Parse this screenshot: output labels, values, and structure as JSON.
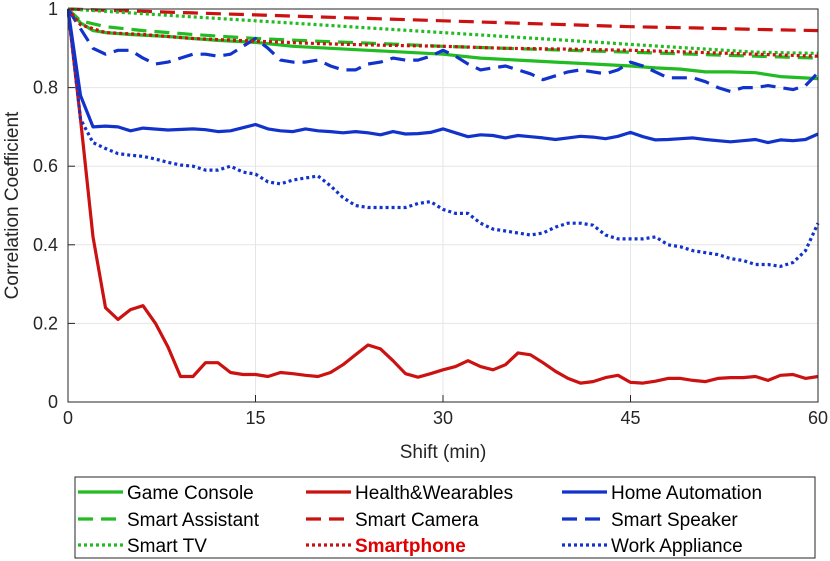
{
  "chart_data": {
    "type": "line",
    "title": "",
    "xlabel": "Shift (min)",
    "ylabel": "Correlation Coefficient",
    "xlim": [
      0,
      60
    ],
    "ylim": [
      0,
      1
    ],
    "xticks": [
      0,
      15,
      30,
      45,
      60
    ],
    "xtick_labels": [
      "0",
      "15",
      "30",
      "45",
      "60"
    ],
    "yticks": [
      0,
      0.2,
      0.4,
      0.6,
      0.8,
      1
    ],
    "ytick_labels": [
      "0",
      "0.2",
      "0.4",
      "0.6",
      "0.8",
      "1"
    ],
    "grid": true,
    "legend_position": "bottom",
    "series": [
      {
        "name": "Game Console",
        "color": "#22bb22",
        "style": "solid",
        "highlight": false,
        "x": [
          0,
          1,
          2,
          3,
          5,
          8,
          10,
          12,
          15,
          18,
          21,
          24,
          27,
          30,
          33,
          36,
          39,
          42,
          45,
          47,
          49,
          51,
          53,
          55,
          57,
          60
        ],
        "y": [
          1.0,
          0.965,
          0.945,
          0.94,
          0.935,
          0.93,
          0.925,
          0.92,
          0.915,
          0.905,
          0.9,
          0.895,
          0.89,
          0.885,
          0.875,
          0.87,
          0.865,
          0.86,
          0.855,
          0.85,
          0.847,
          0.84,
          0.84,
          0.838,
          0.828,
          0.823
        ]
      },
      {
        "name": "Health&Wearables",
        "color": "#cc1111",
        "style": "solid",
        "highlight": false,
        "x": [
          0,
          1,
          2,
          3,
          4,
          5,
          6,
          7,
          8,
          9,
          10,
          11,
          12,
          13,
          14,
          15,
          16,
          17,
          18,
          19,
          20,
          21,
          22,
          23,
          24,
          25,
          26,
          27,
          28,
          29,
          30,
          31,
          32,
          33,
          34,
          35,
          36,
          37,
          38,
          39,
          40,
          41,
          42,
          43,
          44,
          45,
          46,
          47,
          48,
          49,
          50,
          51,
          52,
          53,
          54,
          55,
          56,
          57,
          58,
          59,
          60
        ],
        "y": [
          1.0,
          0.72,
          0.42,
          0.24,
          0.21,
          0.235,
          0.245,
          0.2,
          0.14,
          0.065,
          0.065,
          0.1,
          0.1,
          0.075,
          0.07,
          0.07,
          0.065,
          0.075,
          0.072,
          0.068,
          0.065,
          0.075,
          0.095,
          0.12,
          0.145,
          0.135,
          0.105,
          0.072,
          0.063,
          0.072,
          0.082,
          0.09,
          0.105,
          0.09,
          0.082,
          0.095,
          0.125,
          0.12,
          0.1,
          0.078,
          0.06,
          0.048,
          0.052,
          0.062,
          0.068,
          0.05,
          0.048,
          0.053,
          0.06,
          0.06,
          0.055,
          0.052,
          0.06,
          0.062,
          0.062,
          0.065,
          0.055,
          0.068,
          0.07,
          0.06,
          0.065
        ]
      },
      {
        "name": "Home Automation",
        "color": "#1133cc",
        "style": "solid",
        "highlight": false,
        "x": [
          0,
          1,
          2,
          3,
          4,
          5,
          6,
          8,
          10,
          11,
          12,
          13,
          14,
          15,
          16,
          17,
          18,
          19,
          20,
          21,
          22,
          23,
          24,
          25,
          26,
          27,
          28,
          29,
          30,
          31,
          32,
          33,
          34,
          35,
          36,
          37,
          38,
          39,
          40,
          41,
          42,
          43,
          44,
          45,
          46,
          47,
          48,
          49,
          50,
          51,
          52,
          53,
          54,
          55,
          56,
          57,
          58,
          59,
          60
        ],
        "y": [
          1.0,
          0.78,
          0.7,
          0.702,
          0.7,
          0.69,
          0.697,
          0.692,
          0.695,
          0.693,
          0.688,
          0.69,
          0.698,
          0.706,
          0.695,
          0.69,
          0.688,
          0.695,
          0.69,
          0.688,
          0.685,
          0.688,
          0.685,
          0.68,
          0.688,
          0.682,
          0.683,
          0.686,
          0.695,
          0.685,
          0.675,
          0.68,
          0.678,
          0.672,
          0.678,
          0.675,
          0.672,
          0.668,
          0.672,
          0.676,
          0.674,
          0.67,
          0.676,
          0.686,
          0.675,
          0.667,
          0.668,
          0.67,
          0.672,
          0.668,
          0.665,
          0.662,
          0.665,
          0.668,
          0.66,
          0.667,
          0.665,
          0.668,
          0.682
        ]
      },
      {
        "name": "Smart Assistant",
        "color": "#22bb22",
        "style": "dashed",
        "highlight": false,
        "x": [
          0,
          1,
          3,
          6,
          10,
          15,
          20,
          25,
          30,
          35,
          40,
          45,
          50,
          55,
          60
        ],
        "y": [
          1.0,
          0.97,
          0.955,
          0.945,
          0.935,
          0.925,
          0.918,
          0.912,
          0.905,
          0.9,
          0.895,
          0.89,
          0.885,
          0.88,
          0.875
        ]
      },
      {
        "name": "Smart Camera",
        "color": "#cc1111",
        "style": "dashed",
        "highlight": false,
        "x": [
          0,
          5,
          10,
          15,
          20,
          25,
          30,
          35,
          40,
          45,
          50,
          55,
          60
        ],
        "y": [
          1.0,
          0.995,
          0.99,
          0.985,
          0.98,
          0.975,
          0.97,
          0.965,
          0.96,
          0.955,
          0.952,
          0.948,
          0.945
        ]
      },
      {
        "name": "Smart Speaker",
        "color": "#1133cc",
        "style": "dashed",
        "highlight": false,
        "x": [
          0,
          1,
          2,
          3,
          4,
          5,
          6,
          7,
          8,
          9,
          10,
          11,
          12,
          13,
          14,
          15,
          16,
          17,
          18,
          19,
          20,
          21,
          22,
          23,
          24,
          25,
          26,
          27,
          28,
          29,
          30,
          31,
          32,
          33,
          34,
          35,
          36,
          37,
          38,
          39,
          40,
          41,
          42,
          43,
          44,
          45,
          46,
          47,
          48,
          49,
          50,
          51,
          52,
          53,
          54,
          55,
          56,
          57,
          58,
          59,
          60
        ],
        "y": [
          1.0,
          0.95,
          0.9,
          0.885,
          0.895,
          0.895,
          0.875,
          0.86,
          0.865,
          0.875,
          0.885,
          0.885,
          0.88,
          0.885,
          0.905,
          0.925,
          0.9,
          0.87,
          0.865,
          0.865,
          0.87,
          0.855,
          0.845,
          0.845,
          0.86,
          0.865,
          0.875,
          0.87,
          0.87,
          0.88,
          0.895,
          0.88,
          0.86,
          0.845,
          0.85,
          0.855,
          0.845,
          0.835,
          0.82,
          0.83,
          0.84,
          0.845,
          0.84,
          0.835,
          0.845,
          0.865,
          0.855,
          0.84,
          0.825,
          0.825,
          0.825,
          0.815,
          0.8,
          0.79,
          0.8,
          0.8,
          0.805,
          0.8,
          0.795,
          0.805,
          0.838
        ]
      },
      {
        "name": "Smart TV",
        "color": "#22bb22",
        "style": "dotted",
        "highlight": false,
        "x": [
          0,
          5,
          10,
          15,
          20,
          25,
          30,
          35,
          40,
          45,
          50,
          55,
          60
        ],
        "y": [
          1.0,
          0.99,
          0.98,
          0.97,
          0.96,
          0.95,
          0.94,
          0.93,
          0.92,
          0.91,
          0.9,
          0.89,
          0.887
        ]
      },
      {
        "name": "Smartphone",
        "color": "#cc1111",
        "style": "dotted",
        "highlight": true,
        "x": [
          0,
          1,
          3,
          6,
          10,
          15,
          20,
          25,
          30,
          35,
          40,
          45,
          50,
          55,
          60
        ],
        "y": [
          1.0,
          0.96,
          0.94,
          0.935,
          0.925,
          0.918,
          0.912,
          0.908,
          0.905,
          0.9,
          0.898,
          0.895,
          0.89,
          0.885,
          0.88
        ]
      },
      {
        "name": "Work Appliance",
        "color": "#1133cc",
        "style": "dotted",
        "highlight": false,
        "x": [
          0,
          1,
          2,
          3,
          4,
          5,
          6,
          7,
          8,
          9,
          10,
          11,
          12,
          13,
          14,
          15,
          16,
          17,
          18,
          19,
          20,
          21,
          22,
          23,
          24,
          25,
          26,
          27,
          28,
          29,
          30,
          31,
          32,
          33,
          34,
          35,
          36,
          37,
          38,
          39,
          40,
          41,
          42,
          43,
          44,
          45,
          46,
          47,
          48,
          49,
          50,
          51,
          52,
          53,
          54,
          55,
          56,
          57,
          58,
          59,
          60
        ],
        "y": [
          1.0,
          0.72,
          0.66,
          0.645,
          0.632,
          0.628,
          0.625,
          0.618,
          0.61,
          0.603,
          0.6,
          0.59,
          0.59,
          0.6,
          0.585,
          0.58,
          0.56,
          0.555,
          0.565,
          0.57,
          0.575,
          0.55,
          0.52,
          0.5,
          0.495,
          0.495,
          0.495,
          0.495,
          0.505,
          0.51,
          0.49,
          0.48,
          0.48,
          0.455,
          0.44,
          0.435,
          0.43,
          0.425,
          0.43,
          0.445,
          0.455,
          0.455,
          0.45,
          0.425,
          0.415,
          0.415,
          0.415,
          0.42,
          0.4,
          0.395,
          0.385,
          0.38,
          0.375,
          0.365,
          0.36,
          0.35,
          0.35,
          0.345,
          0.355,
          0.385,
          0.455
        ]
      }
    ]
  }
}
